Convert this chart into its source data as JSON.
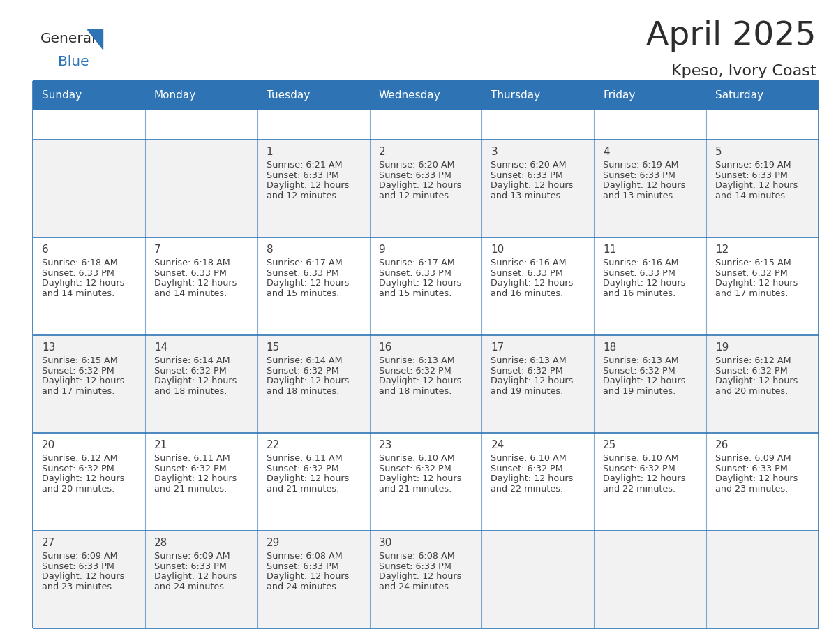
{
  "title": "April 2025",
  "subtitle": "Kpeso, Ivory Coast",
  "days_of_week": [
    "Sunday",
    "Monday",
    "Tuesday",
    "Wednesday",
    "Thursday",
    "Friday",
    "Saturday"
  ],
  "header_bg": "#2E74B5",
  "header_text": "#FFFFFF",
  "cell_bg_white": "#FFFFFF",
  "cell_bg_gray": "#F2F2F2",
  "border_color": "#2E74B5",
  "text_color": "#404040",
  "day_num_color": "#404040",
  "title_color": "#2C2C2C",
  "logo_general_color": "#2C2C2C",
  "logo_blue_color": "#2E74B5",
  "calendar_data": [
    [
      {
        "day": 0
      },
      {
        "day": 0
      },
      {
        "day": 1,
        "sunrise": "6:21 AM",
        "sunset": "6:33 PM",
        "daylight_min": "12 minutes."
      },
      {
        "day": 2,
        "sunrise": "6:20 AM",
        "sunset": "6:33 PM",
        "daylight_min": "12 minutes."
      },
      {
        "day": 3,
        "sunrise": "6:20 AM",
        "sunset": "6:33 PM",
        "daylight_min": "13 minutes."
      },
      {
        "day": 4,
        "sunrise": "6:19 AM",
        "sunset": "6:33 PM",
        "daylight_min": "13 minutes."
      },
      {
        "day": 5,
        "sunrise": "6:19 AM",
        "sunset": "6:33 PM",
        "daylight_min": "14 minutes."
      }
    ],
    [
      {
        "day": 6,
        "sunrise": "6:18 AM",
        "sunset": "6:33 PM",
        "daylight_min": "14 minutes."
      },
      {
        "day": 7,
        "sunrise": "6:18 AM",
        "sunset": "6:33 PM",
        "daylight_min": "14 minutes."
      },
      {
        "day": 8,
        "sunrise": "6:17 AM",
        "sunset": "6:33 PM",
        "daylight_min": "15 minutes."
      },
      {
        "day": 9,
        "sunrise": "6:17 AM",
        "sunset": "6:33 PM",
        "daylight_min": "15 minutes."
      },
      {
        "day": 10,
        "sunrise": "6:16 AM",
        "sunset": "6:33 PM",
        "daylight_min": "16 minutes."
      },
      {
        "day": 11,
        "sunrise": "6:16 AM",
        "sunset": "6:33 PM",
        "daylight_min": "16 minutes."
      },
      {
        "day": 12,
        "sunrise": "6:15 AM",
        "sunset": "6:32 PM",
        "daylight_min": "17 minutes."
      }
    ],
    [
      {
        "day": 13,
        "sunrise": "6:15 AM",
        "sunset": "6:32 PM",
        "daylight_min": "17 minutes."
      },
      {
        "day": 14,
        "sunrise": "6:14 AM",
        "sunset": "6:32 PM",
        "daylight_min": "18 minutes."
      },
      {
        "day": 15,
        "sunrise": "6:14 AM",
        "sunset": "6:32 PM",
        "daylight_min": "18 minutes."
      },
      {
        "day": 16,
        "sunrise": "6:13 AM",
        "sunset": "6:32 PM",
        "daylight_min": "18 minutes."
      },
      {
        "day": 17,
        "sunrise": "6:13 AM",
        "sunset": "6:32 PM",
        "daylight_min": "19 minutes."
      },
      {
        "day": 18,
        "sunrise": "6:13 AM",
        "sunset": "6:32 PM",
        "daylight_min": "19 minutes."
      },
      {
        "day": 19,
        "sunrise": "6:12 AM",
        "sunset": "6:32 PM",
        "daylight_min": "20 minutes."
      }
    ],
    [
      {
        "day": 20,
        "sunrise": "6:12 AM",
        "sunset": "6:32 PM",
        "daylight_min": "20 minutes."
      },
      {
        "day": 21,
        "sunrise": "6:11 AM",
        "sunset": "6:32 PM",
        "daylight_min": "21 minutes."
      },
      {
        "day": 22,
        "sunrise": "6:11 AM",
        "sunset": "6:32 PM",
        "daylight_min": "21 minutes."
      },
      {
        "day": 23,
        "sunrise": "6:10 AM",
        "sunset": "6:32 PM",
        "daylight_min": "21 minutes."
      },
      {
        "day": 24,
        "sunrise": "6:10 AM",
        "sunset": "6:32 PM",
        "daylight_min": "22 minutes."
      },
      {
        "day": 25,
        "sunrise": "6:10 AM",
        "sunset": "6:32 PM",
        "daylight_min": "22 minutes."
      },
      {
        "day": 26,
        "sunrise": "6:09 AM",
        "sunset": "6:33 PM",
        "daylight_min": "23 minutes."
      }
    ],
    [
      {
        "day": 27,
        "sunrise": "6:09 AM",
        "sunset": "6:33 PM",
        "daylight_min": "23 minutes."
      },
      {
        "day": 28,
        "sunrise": "6:09 AM",
        "sunset": "6:33 PM",
        "daylight_min": "24 minutes."
      },
      {
        "day": 29,
        "sunrise": "6:08 AM",
        "sunset": "6:33 PM",
        "daylight_min": "24 minutes."
      },
      {
        "day": 30,
        "sunrise": "6:08 AM",
        "sunset": "6:33 PM",
        "daylight_min": "24 minutes."
      },
      {
        "day": 0
      },
      {
        "day": 0
      },
      {
        "day": 0
      }
    ]
  ],
  "row_bg": [
    "#F2F2F2",
    "#FFFFFF",
    "#F2F2F2",
    "#FFFFFF",
    "#F2F2F2"
  ],
  "figsize": [
    11.88,
    9.18
  ],
  "dpi": 100
}
